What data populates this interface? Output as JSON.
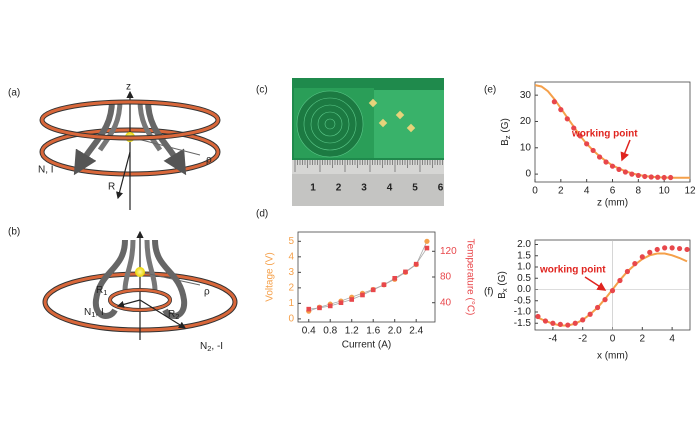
{
  "panel_labels": {
    "a": "(a)",
    "b": "(b)",
    "c": "(c)",
    "d": "(d)",
    "e": "(e)",
    "f": "(f)"
  },
  "illustration_a": {
    "axis": "z",
    "coil": "N, I",
    "radius": "R",
    "rho": "ρ"
  },
  "illustration_b": {
    "r1": {
      "base": "R",
      "sub": "1"
    },
    "n1": {
      "base": "N",
      "sub": "1",
      "rest": ", I"
    },
    "r2": {
      "base": "R",
      "sub": "2"
    },
    "rho": "ρ",
    "n2": {
      "base": "N",
      "sub": "2",
      "rest": ", -I"
    }
  },
  "photo_c": {
    "ruler": [
      1,
      2,
      3,
      4,
      5,
      6
    ]
  },
  "chart_data": [
    {
      "type": "line",
      "xlabel": "Current (A)",
      "ylabel": "Voltage (V)",
      "y2label": "Temperature (°C)",
      "ycolor": "#f5a04a",
      "y2color": "#e8474b",
      "x": [
        0.4,
        0.6,
        0.8,
        1.0,
        1.2,
        1.4,
        1.6,
        1.8,
        2.0,
        2.2,
        2.4,
        2.6
      ],
      "xlim": [
        0.2,
        2.75
      ],
      "xticks": [
        0.4,
        0.8,
        1.2,
        1.6,
        {
          "value": 2.0,
          "label": "2.0"
        },
        2.4
      ],
      "ylim": [
        -0.2,
        5.6
      ],
      "yticks": [
        0,
        1,
        2,
        3,
        4,
        5
      ],
      "y2lim": [
        10,
        150
      ],
      "y2ticks": [
        40,
        80,
        120
      ],
      "series": [
        {
          "color": "#f5a04a",
          "marker": "circle",
          "line_color": "#aaaaaa",
          "values": [
            0.5,
            0.75,
            0.95,
            1.15,
            1.4,
            1.65,
            1.9,
            2.2,
            2.55,
            3.0,
            3.5,
            5.0
          ]
        },
        {
          "color": "#e8474b",
          "marker": "square",
          "line_color": "#aaaaaa",
          "axis": "y2",
          "values": [
            30,
            32,
            35,
            40,
            45,
            52,
            60,
            68,
            78,
            88,
            100,
            125
          ]
        }
      ]
    },
    {
      "type": "line",
      "xlabel": "z (mm)",
      "ylabel": {
        "base": "B",
        "sub": "z",
        "rest": " (G)"
      },
      "annotation": "working point",
      "xlim": [
        0,
        12
      ],
      "xticks": [
        0,
        2,
        4,
        6,
        8,
        10,
        12
      ],
      "ylim": [
        -3,
        35
      ],
      "yticks": [
        0,
        10,
        20,
        30
      ],
      "series": [
        {
          "color": "#f5a04a",
          "style": "line",
          "x": [
            0,
            0.5,
            1,
            1.5,
            2,
            2.5,
            3,
            3.5,
            4,
            4.5,
            5,
            5.5,
            6,
            6.5,
            7,
            7.5,
            8,
            8.5,
            9,
            9.5,
            10,
            10.5,
            11,
            11.5,
            12
          ],
          "values": [
            33.8,
            33.3,
            31.5,
            28.5,
            25,
            21.5,
            18,
            14.5,
            11.5,
            9,
            6.8,
            4.9,
            3.3,
            2.1,
            1.1,
            0.3,
            -0.3,
            -0.7,
            -1.0,
            -1.2,
            -1.3,
            -1.4,
            -1.4,
            -1.4,
            -1.4
          ]
        },
        {
          "color": "#e8474b",
          "style": "markers",
          "marker": "circle",
          "x": [
            1.5,
            2,
            2.5,
            3,
            3.5,
            4,
            4.5,
            5,
            5.5,
            6,
            6.5,
            7,
            7.5,
            8,
            8.5,
            9,
            9.5,
            10,
            10.5
          ],
          "values": [
            27.5,
            24.5,
            21,
            17.5,
            14.5,
            11.5,
            9,
            6.5,
            4.6,
            3,
            1.8,
            0.8,
            0,
            -0.5,
            -0.9,
            -1.1,
            -1.2,
            -1.3,
            -1.3
          ]
        }
      ]
    },
    {
      "type": "line",
      "xlabel": "x (mm)",
      "ylabel": {
        "base": "B",
        "sub": "x",
        "rest": " (G)"
      },
      "annotation": "working point",
      "zero_lines": true,
      "xlim": [
        -5.2,
        5.2
      ],
      "xticks": [
        -4,
        -2,
        0,
        2,
        4
      ],
      "ylim": [
        -1.8,
        2.2
      ],
      "yticks": [
        -1.5,
        {
          "value": -1.0,
          "label": "-1.0"
        },
        -0.5,
        {
          "value": 0.0,
          "label": "0.0"
        },
        0.5,
        {
          "value": 1.0,
          "label": "1.0"
        },
        1.5,
        {
          "value": 2.0,
          "label": "2.0"
        }
      ],
      "series": [
        {
          "color": "#f5a04a",
          "style": "line",
          "x": [
            -5,
            -4.5,
            -4,
            -3.5,
            -3,
            -2.5,
            -2,
            -1.5,
            -1,
            -0.5,
            0,
            0.5,
            1,
            1.5,
            2,
            2.5,
            3,
            3.5,
            4,
            4.5,
            5
          ],
          "values": [
            -1.25,
            -1.4,
            -1.52,
            -1.6,
            -1.6,
            -1.52,
            -1.35,
            -1.1,
            -0.8,
            -0.42,
            0,
            0.42,
            0.8,
            1.1,
            1.35,
            1.52,
            1.6,
            1.6,
            1.52,
            1.4,
            1.25
          ]
        },
        {
          "color": "#e8474b",
          "style": "markers",
          "marker": "circle",
          "x": [
            -5,
            -4.5,
            -4,
            -3.5,
            -3,
            -2.5,
            -2,
            -1.5,
            -1,
            -0.5,
            0,
            0.5,
            1,
            1.5,
            2,
            2.5,
            3,
            3.5,
            4,
            4.5,
            5
          ],
          "values": [
            -1.2,
            -1.4,
            -1.5,
            -1.55,
            -1.58,
            -1.5,
            -1.35,
            -1.1,
            -0.8,
            -0.45,
            -0.05,
            0.4,
            0.8,
            1.15,
            1.45,
            1.65,
            1.78,
            1.85,
            1.85,
            1.82,
            1.78
          ]
        }
      ]
    }
  ]
}
